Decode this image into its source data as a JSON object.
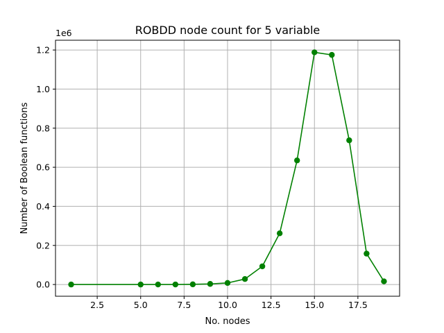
{
  "chart_data": {
    "type": "line",
    "title": "ROBDD node count for 5 variable",
    "xlabel": "No. nodes",
    "ylabel": "Number of Boolean functions",
    "y_offset_label": "1e6",
    "xlim": [
      0.1,
      19.9
    ],
    "ylim": [
      -60000,
      1250000
    ],
    "x_ticks": [
      2.5,
      5.0,
      7.5,
      10.0,
      12.5,
      15.0,
      17.5
    ],
    "x_tick_labels": [
      "2.5",
      "5.0",
      "7.5",
      "10.0",
      "12.5",
      "15.0",
      "17.5"
    ],
    "y_ticks": [
      0,
      200000,
      400000,
      600000,
      800000,
      1000000,
      1200000
    ],
    "y_tick_labels": [
      "0.0",
      "0.2",
      "0.4",
      "0.6",
      "0.8",
      "1.0",
      "1.2"
    ],
    "grid": true,
    "series": [
      {
        "color": "#008000",
        "marker": "circle",
        "x": [
          1,
          5,
          6,
          7,
          8,
          9,
          10,
          11,
          12,
          13,
          14,
          15,
          16,
          17,
          18,
          19
        ],
        "y": [
          2,
          10,
          80,
          240,
          860,
          3000,
          8000,
          28000,
          93000,
          262000,
          635000,
          1188000,
          1175000,
          738000,
          158000,
          16000
        ]
      }
    ]
  }
}
